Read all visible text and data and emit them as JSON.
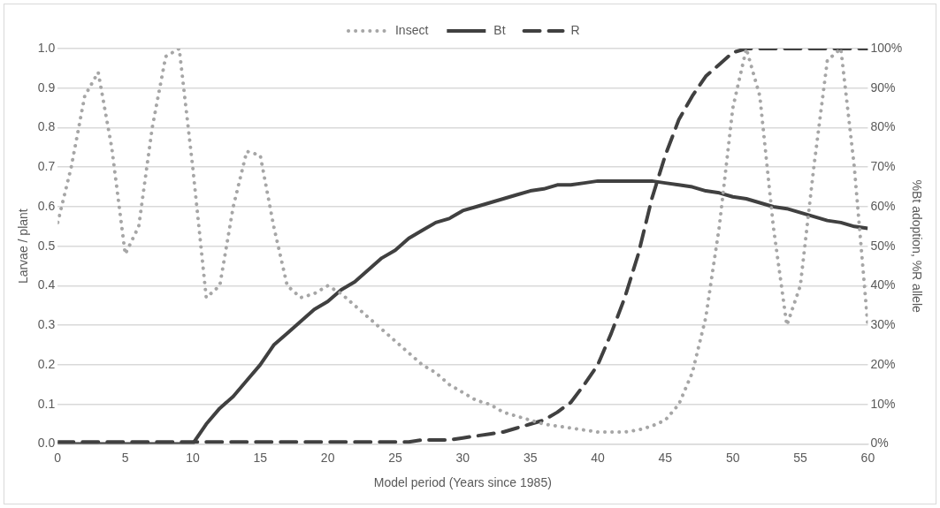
{
  "chart_data": {
    "type": "line",
    "xlabel": "Model period (Years since 1985)",
    "ylabel": "Larvae / plant",
    "y2label": "%Bt adoption, %R allele",
    "x": [
      0,
      1,
      2,
      3,
      4,
      5,
      6,
      7,
      8,
      9,
      10,
      11,
      12,
      13,
      14,
      15,
      16,
      17,
      18,
      19,
      20,
      21,
      22,
      23,
      24,
      25,
      26,
      27,
      28,
      29,
      30,
      31,
      32,
      33,
      34,
      35,
      36,
      37,
      38,
      39,
      40,
      41,
      42,
      43,
      44,
      45,
      46,
      47,
      48,
      49,
      50,
      51,
      52,
      53,
      54,
      55,
      56,
      57,
      58,
      59,
      60
    ],
    "xlim": [
      0,
      60
    ],
    "xticks": [
      0,
      5,
      10,
      15,
      20,
      25,
      30,
      35,
      40,
      45,
      50,
      55,
      60
    ],
    "ylim": [
      0,
      1
    ],
    "yticks": [
      {
        "value": 0,
        "label": "0.0"
      },
      0.1,
      0.2,
      0.3,
      0.4,
      0.5,
      0.6,
      0.7,
      0.8,
      0.9,
      {
        "value": 1,
        "label": "1.0"
      }
    ],
    "y2lim": [
      0,
      100
    ],
    "y2ticks": [
      {
        "value": 0,
        "label": "0%"
      },
      {
        "value": 10,
        "label": "10%"
      },
      {
        "value": 20,
        "label": "20%"
      },
      {
        "value": 30,
        "label": "30%"
      },
      {
        "value": 40,
        "label": "40%"
      },
      {
        "value": 50,
        "label": "50%"
      },
      {
        "value": 60,
        "label": "60%"
      },
      {
        "value": 70,
        "label": "70%"
      },
      {
        "value": 80,
        "label": "80%"
      },
      {
        "value": 90,
        "label": "90%"
      },
      {
        "value": 100,
        "label": "100%"
      }
    ],
    "grid": "y",
    "legend": "top",
    "marker": "none",
    "series": [
      {
        "name": "Insect",
        "color": "#a6a6a6",
        "line_style": "dotted",
        "values": [
          0.56,
          0.7,
          0.88,
          0.94,
          0.75,
          0.48,
          0.55,
          0.8,
          0.98,
          1.0,
          0.7,
          0.37,
          0.4,
          0.6,
          0.74,
          0.73,
          0.55,
          0.4,
          0.37,
          0.38,
          0.4,
          0.38,
          0.35,
          0.32,
          0.29,
          0.26,
          0.23,
          0.2,
          0.18,
          0.15,
          0.13,
          0.11,
          0.1,
          0.08,
          0.07,
          0.06,
          0.05,
          0.045,
          0.04,
          0.035,
          0.03,
          0.03,
          0.03,
          0.035,
          0.045,
          0.06,
          0.1,
          0.18,
          0.32,
          0.55,
          0.85,
          1.0,
          0.88,
          0.55,
          0.3,
          0.4,
          0.7,
          0.97,
          1.0,
          0.7,
          0.3
        ]
      },
      {
        "name": "Bt",
        "color": "#404040",
        "line_style": "solid",
        "axis": "y2",
        "values": [
          0,
          0,
          0,
          0,
          0,
          0,
          0,
          0,
          0,
          0,
          0,
          5,
          9,
          12,
          16,
          20,
          25,
          28,
          31,
          34,
          36,
          39,
          41,
          44,
          47,
          49,
          52,
          54,
          56,
          57,
          59,
          60,
          61,
          62,
          63,
          64,
          64.5,
          65.5,
          65.5,
          66,
          66.5,
          66.5,
          66.5,
          66.5,
          66.5,
          66,
          65.5,
          65,
          64,
          63.5,
          62.5,
          62,
          61,
          60,
          59.5,
          58.5,
          57.5,
          56.5,
          56,
          55,
          54.5
        ]
      },
      {
        "name": "R",
        "color": "#404040",
        "line_style": "dashed",
        "axis": "y2",
        "values": [
          0.5,
          0.5,
          0.5,
          0.5,
          0.5,
          0.5,
          0.5,
          0.5,
          0.5,
          0.5,
          0.5,
          0.5,
          0.5,
          0.5,
          0.5,
          0.5,
          0.5,
          0.5,
          0.5,
          0.5,
          0.5,
          0.5,
          0.5,
          0.5,
          0.5,
          0.5,
          0.5,
          1,
          1,
          1,
          1.5,
          2,
          2.5,
          3,
          4,
          5,
          6,
          8,
          10.5,
          15,
          20,
          28,
          37,
          48,
          62,
          73,
          82,
          88,
          93,
          96,
          99,
          100,
          100,
          100,
          100,
          100,
          100,
          100,
          100,
          100,
          100
        ]
      }
    ]
  }
}
